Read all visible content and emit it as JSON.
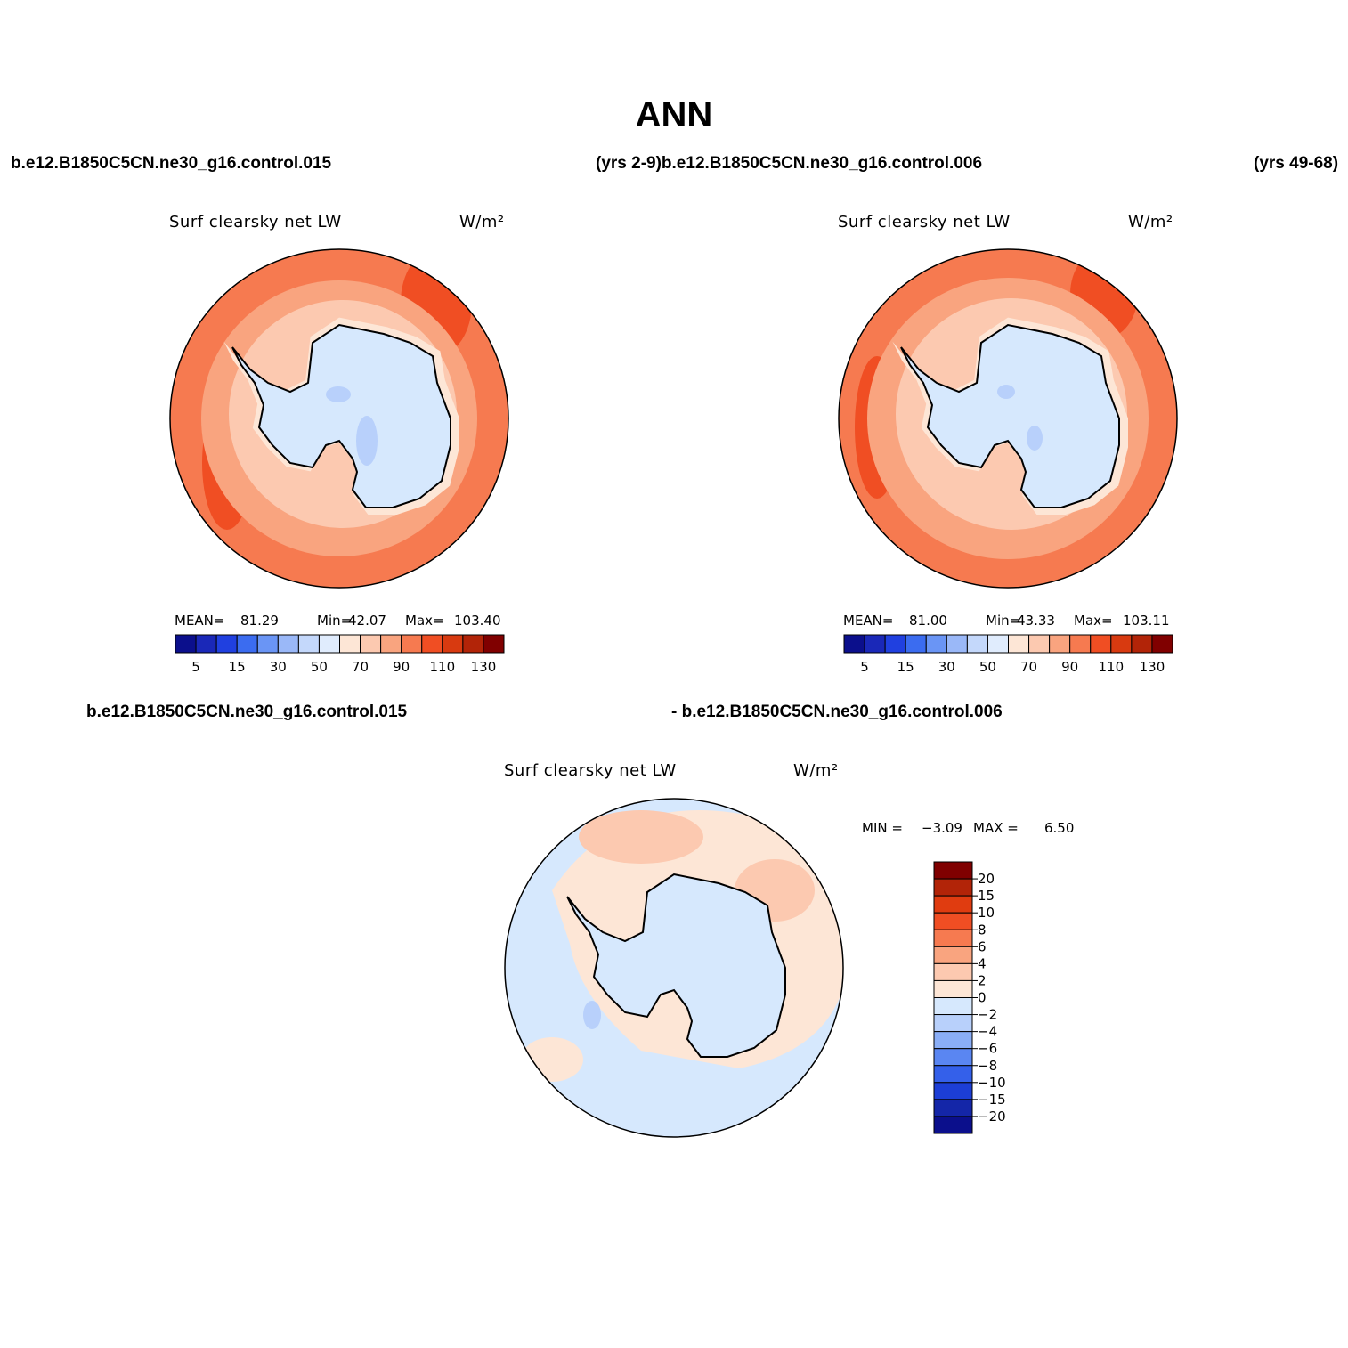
{
  "title": "ANN",
  "headers": {
    "top_left": "b.e12.B1850C5CN.ne30_g16.control.015",
    "top_middle": "(yrs 2-9)b.e12.B1850C5CN.ne30_g16.control.006",
    "top_right": "(yrs 49-68)",
    "bottom_left": "b.e12.B1850C5CN.ne30_g16.control.015",
    "bottom_right": "- b.e12.B1850C5CN.ne30_g16.control.006"
  },
  "panels": [
    {
      "subtitle": "Surf clearsky net LW",
      "units": "W/m²",
      "stats": [
        {
          "label": "MEAN=",
          "value": "81.29"
        },
        {
          "label": "Min=",
          "value": "42.07"
        },
        {
          "label": "Max=",
          "value": "103.40"
        }
      ],
      "colorbar": {
        "colors": [
          "#0b0f8c",
          "#1a28b8",
          "#2040e0",
          "#3b6cf0",
          "#6a95f5",
          "#9ab8f8",
          "#c4d8fb",
          "#e0ecfd",
          "#fde6d6",
          "#fcc9b0",
          "#f9a47f",
          "#f67a50",
          "#f04e23",
          "#d83a10",
          "#b22408",
          "#800000"
        ],
        "labels": [
          "5",
          "15",
          "30",
          "50",
          "70",
          "90",
          "110",
          "130"
        ]
      }
    },
    {
      "subtitle": "Surf clearsky net LW",
      "units": "W/m²",
      "stats": [
        {
          "label": "MEAN=",
          "value": "81.00"
        },
        {
          "label": "Min=",
          "value": "43.33"
        },
        {
          "label": "Max=",
          "value": "103.11"
        }
      ],
      "colorbar": {
        "colors": [
          "#0b0f8c",
          "#1a28b8",
          "#2040e0",
          "#3b6cf0",
          "#6a95f5",
          "#9ab8f8",
          "#c4d8fb",
          "#e0ecfd",
          "#fde6d6",
          "#fcc9b0",
          "#f9a47f",
          "#f67a50",
          "#f04e23",
          "#d83a10",
          "#b22408",
          "#800000"
        ],
        "labels": [
          "5",
          "15",
          "30",
          "50",
          "70",
          "90",
          "110",
          "130"
        ]
      }
    },
    {
      "subtitle": "Surf clearsky net LW",
      "units": "W/m²",
      "stats": [
        {
          "label": "MIN =",
          "value": "−3.09"
        },
        {
          "label": "MAX =",
          "value": "6.50"
        }
      ],
      "colorbar": {
        "colors": [
          "#800000",
          "#b22408",
          "#e03c10",
          "#f04e23",
          "#f67a50",
          "#f9a47f",
          "#fcc9b0",
          "#fde6d6",
          "#d6e8fd",
          "#b8d0fb",
          "#8aaef7",
          "#5a86f2",
          "#3460ea",
          "#1c3ed6",
          "#1426a8",
          "#0b0f8c"
        ],
        "labels": [
          "20",
          "15",
          "10",
          "8",
          "6",
          "4",
          "2",
          "0",
          "−2",
          "−4",
          "−6",
          "−8",
          "−10",
          "−15",
          "−20"
        ]
      }
    }
  ]
}
